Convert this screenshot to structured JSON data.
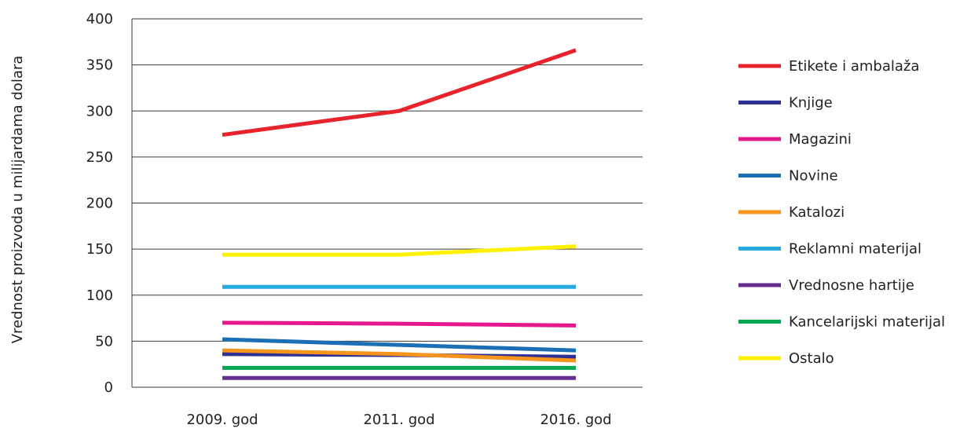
{
  "chart_data": {
    "type": "line",
    "x": [
      "2009. god",
      "2011. god",
      "2016. god"
    ],
    "ylabel": "Vrednost proizvoda u milijardama dolara",
    "ylim": [
      0,
      400
    ],
    "yticks": [
      0,
      50,
      100,
      150,
      200,
      250,
      300,
      350,
      400
    ],
    "grid": true,
    "legend_position": "right",
    "series": [
      {
        "name": "Etikete i ambalaža",
        "color": "#e8232b",
        "values": [
          274,
          300,
          366
        ]
      },
      {
        "name": "Knjige",
        "color": "#2e3192",
        "values": [
          36,
          35,
          33
        ]
      },
      {
        "name": "Magazini",
        "color": "#e6178c",
        "values": [
          70,
          69,
          67
        ]
      },
      {
        "name": "Novine",
        "color": "#1b6fb5",
        "values": [
          52,
          46,
          40
        ]
      },
      {
        "name": "Katalozi",
        "color": "#f7941d",
        "values": [
          40,
          36,
          29
        ]
      },
      {
        "name": "Reklamni materijal",
        "color": "#27aae1",
        "values": [
          109,
          109,
          109
        ]
      },
      {
        "name": "Vrednosne hartije",
        "color": "#662d91",
        "values": [
          10,
          10,
          10
        ]
      },
      {
        "name": "Kancelarijski materijal",
        "color": "#00a650",
        "values": [
          21,
          21,
          21
        ]
      },
      {
        "name": "Ostalo",
        "color": "#fff200",
        "values": [
          144,
          144,
          153
        ]
      }
    ]
  }
}
